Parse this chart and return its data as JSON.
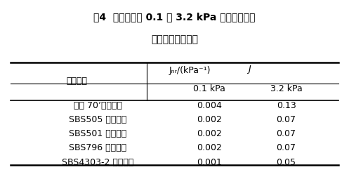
{
  "title_line1": "表4  各类沥青在 0.1 及 3.2 kPa 应力下的平均",
  "title_line2": "不可恢复蠕变柔量",
  "col_header_main": "Jₙᵣ/(kPa⁻¹)",
  "col_header_sub1": "0.1 kPa",
  "col_header_sub2": "3.2 kPa",
  "row_header": "沥青类型",
  "rows": [
    [
      "中海 70’道路沥青",
      "0.004",
      "0.13"
    ],
    [
      "SBS505 改性沥青",
      "0.002",
      "0.07"
    ],
    [
      "SBS501 改性沥青",
      "0.002",
      "0.07"
    ],
    [
      "SBS796 改性沥青",
      "0.002",
      "0.07"
    ],
    [
      "SBS4303-2 改性沥青",
      "0.001",
      "0.05"
    ]
  ],
  "bg_color": "#ffffff",
  "text_color": "#000000",
  "font_size_title": 10,
  "font_size_header": 9,
  "font_size_body": 9
}
